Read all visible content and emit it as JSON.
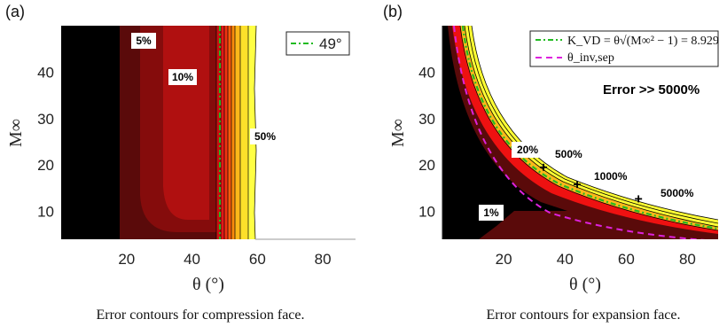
{
  "chart_data": [
    {
      "type": "heatmap",
      "panel_label": "(a)",
      "caption": "Error contours for compression face.",
      "xlabel": "θ (°)",
      "ylabel": "M∞",
      "xlim": [
        0,
        90
      ],
      "ylim": [
        4,
        50
      ],
      "xticks": [
        20,
        40,
        60,
        80
      ],
      "yticks": [
        10,
        20,
        30,
        40
      ],
      "contour_labels": [
        "5%",
        "10%",
        "50%"
      ],
      "legend": [
        {
          "label": "49°",
          "color": "#22bb22",
          "style": "dash-dot"
        }
      ],
      "reference_line": {
        "x": 49,
        "color": "#22bb22"
      },
      "colors": {
        "low": "#000000",
        "mid": "#5a0a0a",
        "high": "#b01010",
        "peak": "#ffff33"
      }
    },
    {
      "type": "heatmap",
      "panel_label": "(b)",
      "caption": "Error contours for expansion face.",
      "xlabel": "θ (°)",
      "ylabel": "M∞",
      "xlim": [
        0,
        90
      ],
      "ylim": [
        4,
        50
      ],
      "xticks": [
        20,
        40,
        60,
        80
      ],
      "yticks": [
        10,
        20,
        30,
        40
      ],
      "contour_labels": [
        "1%",
        "20%",
        "500%",
        "1000%",
        "5000%"
      ],
      "annotation": "Error >> 5000%",
      "marked_points": [
        {
          "theta": 33,
          "mach": 19.5
        },
        {
          "theta": 44,
          "mach": 15.8
        },
        {
          "theta": 64,
          "mach": 12.7
        }
      ],
      "legend": [
        {
          "label": "K_VD = θ√(M∞² − 1) = 8.929",
          "color": "#22bb22",
          "style": "dash-dot"
        },
        {
          "label": "θ_inv,sep",
          "color": "#dd22dd",
          "style": "dashed"
        }
      ],
      "k_vd": 8.929,
      "colors": {
        "low": "#000000",
        "mid": "#5a0a0a",
        "high": "#ee1111",
        "peak": "#ffff33",
        "saturated": "#ffffff"
      }
    }
  ]
}
